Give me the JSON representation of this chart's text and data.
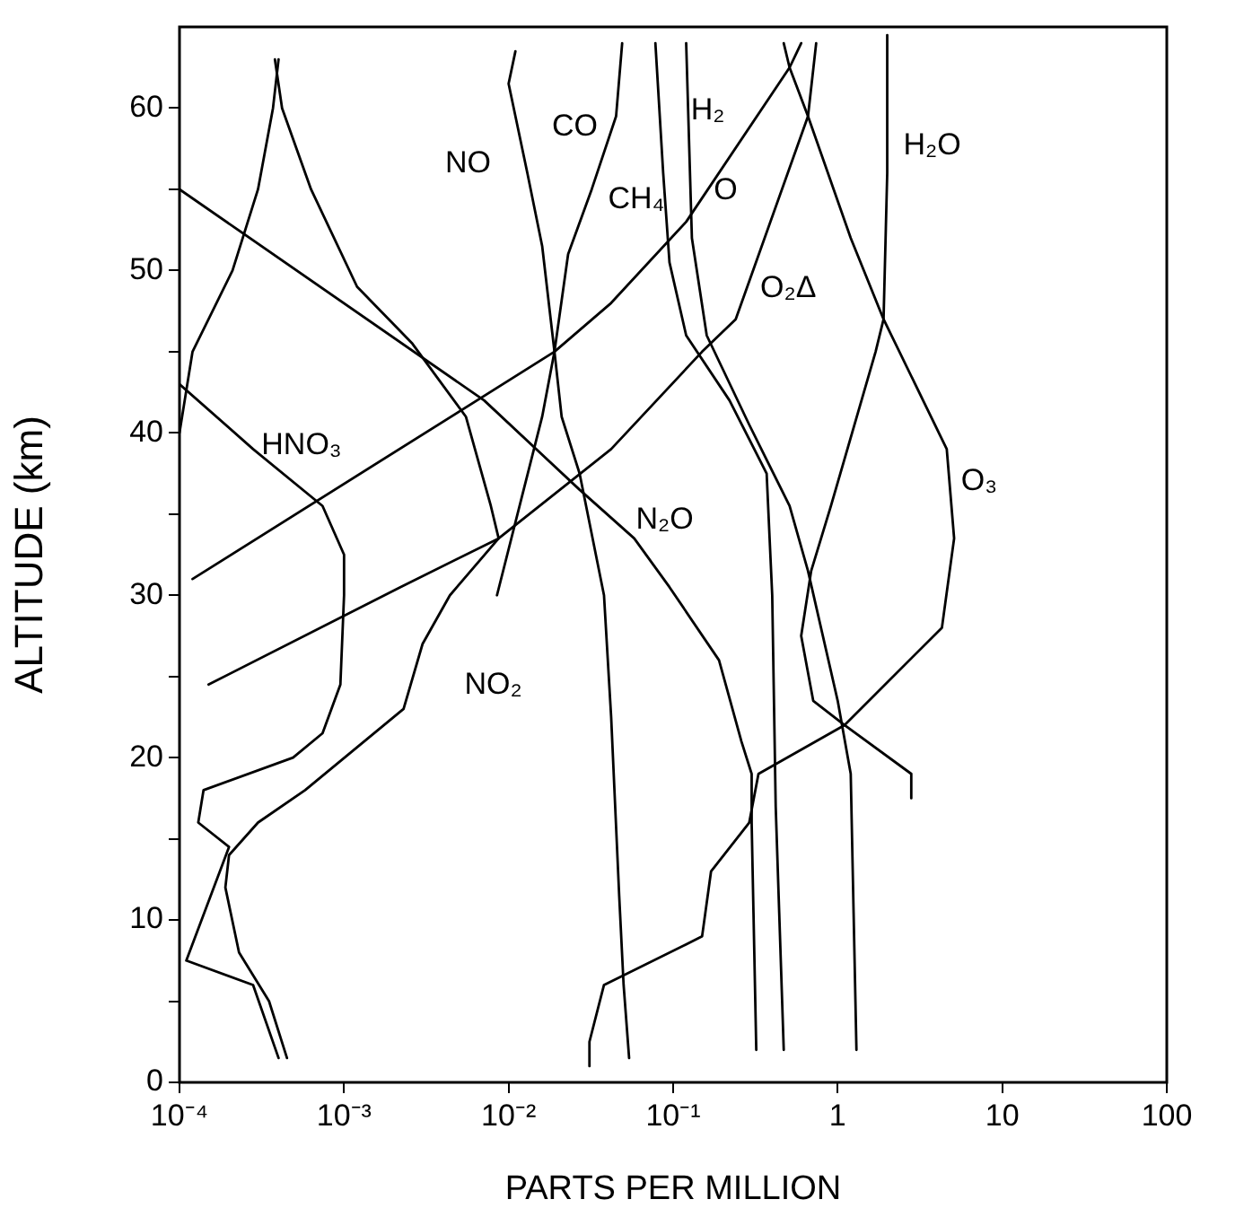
{
  "chart_data": {
    "type": "line",
    "xlabel": "PARTS PER MILLION",
    "ylabel": "ALTITUDE (km)",
    "log": "x",
    "grid": false,
    "legend": false,
    "marker": "none",
    "line_style": "solid",
    "xlim": [
      0.0001,
      100
    ],
    "xticks": [
      {
        "value": 0.0001,
        "label": "10⁻⁴"
      },
      {
        "value": 0.001,
        "label": "10⁻³"
      },
      {
        "value": 0.01,
        "label": "10⁻²"
      },
      {
        "value": 0.1,
        "label": "10⁻¹"
      },
      1,
      10,
      100
    ],
    "ylim": [
      0,
      65
    ],
    "yticks": [
      0,
      {
        "value": 5,
        "label": null
      },
      10,
      {
        "value": 15,
        "label": null
      },
      20,
      {
        "value": 25,
        "label": null
      },
      30,
      {
        "value": 35,
        "label": null
      },
      40,
      {
        "value": 45,
        "label": null
      },
      50,
      {
        "value": 55,
        "label": null
      },
      60
    ],
    "series": [
      {
        "color": "#000000",
        "x": [
          0.0001,
          0.00012,
          0.00021,
          0.0003,
          0.00037,
          0.0004
        ],
        "values": [
          40,
          45,
          50,
          55,
          60,
          63
        ]
      },
      {
        "name": "NO₂",
        "color": "#000000",
        "x": [
          0.00038,
          0.00042,
          0.00063,
          0.0012,
          0.0026,
          0.0055,
          0.0078,
          0.0087,
          0.0044,
          0.003,
          0.0023,
          0.00058,
          0.0003,
          0.0002,
          0.00019,
          0.00023,
          0.00035,
          0.00045
        ],
        "values": [
          63,
          60,
          55,
          49,
          45.5,
          41,
          35.5,
          33.5,
          30,
          27,
          23,
          18,
          16,
          14,
          12,
          8,
          5,
          1.5
        ]
      },
      {
        "name": "HNO₃",
        "color": "#000000",
        "x": [
          0.0001,
          0.00028,
          0.00074,
          0.001,
          0.001,
          0.00095,
          0.00074,
          0.00049,
          0.00014,
          0.00013,
          0.0002,
          0.00011,
          0.00028,
          0.0004
        ],
        "values": [
          43,
          39,
          35.5,
          32.5,
          30,
          24.5,
          21.5,
          20,
          18,
          16,
          14.5,
          7.5,
          6,
          1.5
        ]
      },
      {
        "name": "NO",
        "color": "#000000",
        "x": [
          0.011,
          0.01,
          0.013,
          0.016,
          0.019,
          0.021,
          0.027,
          0.038,
          0.042,
          0.047,
          0.05,
          0.054
        ],
        "values": [
          63.5,
          61.5,
          56,
          51.5,
          45,
          41,
          37.5,
          30,
          22.5,
          11.5,
          6,
          1.5
        ]
      },
      {
        "name": "CO",
        "color": "#000000",
        "x": [
          0.049,
          0.045,
          0.032,
          0.023,
          0.019,
          0.016,
          0.012,
          0.0085
        ],
        "values": [
          64,
          59.5,
          55,
          51,
          45,
          41,
          36,
          30
        ]
      },
      {
        "name": "CH₄",
        "color": "#000000",
        "x": [
          0.078,
          0.087,
          0.095,
          0.12,
          0.22,
          0.37,
          0.4,
          0.42,
          0.47
        ],
        "values": [
          64,
          56,
          50.5,
          46,
          42,
          37.5,
          30,
          17,
          2
        ]
      },
      {
        "name": "H₂",
        "color": "#000000",
        "x": [
          0.12,
          0.13,
          0.16,
          0.29,
          0.51,
          0.66,
          1,
          1.2,
          1.3
        ],
        "values": [
          64,
          52,
          46,
          40.5,
          35.5,
          31.5,
          23.5,
          19,
          2
        ]
      },
      {
        "name": "N₂O",
        "color": "#000000",
        "x": [
          0.0001,
          0.0071,
          0.027,
          0.058,
          0.095,
          0.19,
          0.26,
          0.3,
          0.3,
          0.32
        ],
        "values": [
          55,
          42,
          36.5,
          33.5,
          30.5,
          26,
          21,
          19,
          16,
          2
        ]
      },
      {
        "name": "O",
        "color": "#000000",
        "x": [
          0.00012,
          0.019,
          0.042,
          0.12,
          0.51,
          0.6
        ],
        "values": [
          31,
          45,
          48,
          53,
          62.5,
          64
        ]
      },
      {
        "name": "O₂Δ",
        "color": "#000000",
        "x": [
          0.00015,
          0.0022,
          0.0087,
          0.042,
          0.15,
          0.24,
          0.66,
          0.74
        ],
        "values": [
          24.5,
          30.5,
          33.5,
          39,
          45,
          47,
          59.5,
          64
        ]
      },
      {
        "name": "O₃",
        "color": "#000000",
        "x": [
          0.031,
          0.031,
          0.038,
          0.12,
          0.15,
          0.17,
          0.29,
          0.33,
          1.1,
          4.3,
          5.1,
          4.6,
          1.9,
          1.2,
          0.66,
          0.51,
          0.47
        ],
        "values": [
          1,
          2.5,
          6,
          8.5,
          9,
          13,
          16,
          19,
          22,
          28,
          33.5,
          39,
          47,
          52,
          59.5,
          62.5,
          64
        ]
      },
      {
        "name": "H₂O",
        "color": "#000000",
        "x": [
          2,
          2,
          1.9,
          1.7,
          0.91,
          0.69,
          0.6,
          0.71,
          1.1,
          2.8,
          2.8
        ],
        "values": [
          64.5,
          56,
          47,
          45,
          35.5,
          31.5,
          27.5,
          23.5,
          22,
          19,
          17.5
        ]
      }
    ]
  }
}
